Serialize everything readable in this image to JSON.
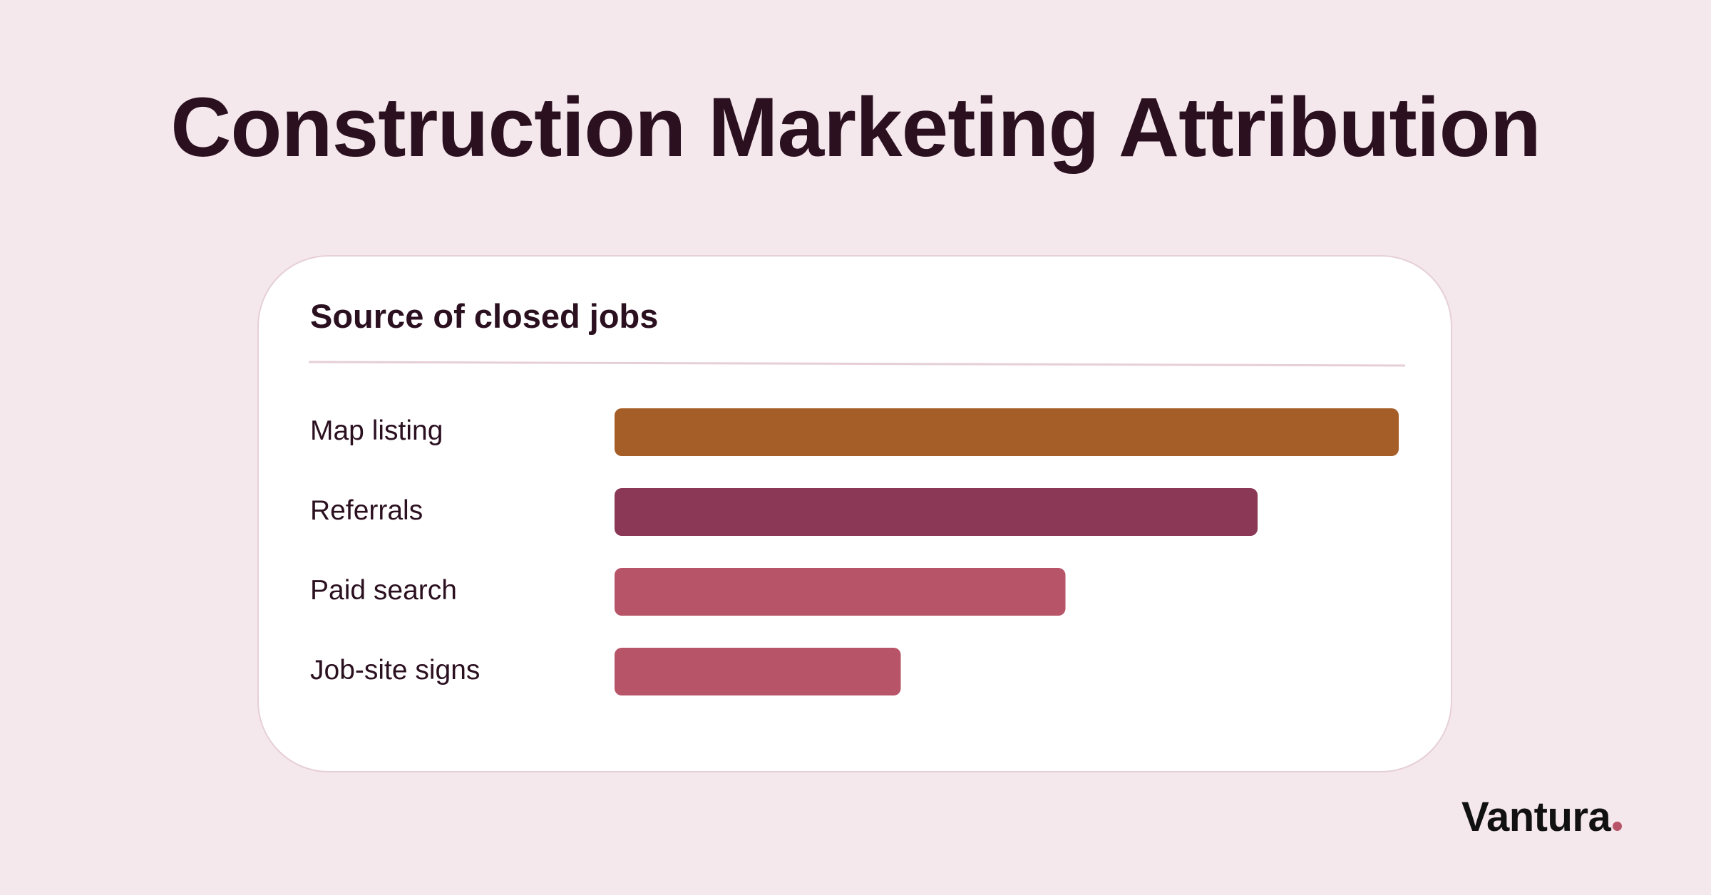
{
  "page": {
    "title": "Construction Marketing Attribution"
  },
  "brand": {
    "name": "Vantura",
    "dot_color": "#b85468"
  },
  "colors": {
    "background": "#f5e8ec",
    "text": "#2b1020",
    "divider": "#e6cfd7"
  },
  "chart_data": {
    "type": "bar",
    "orientation": "horizontal",
    "title": "Source of closed jobs",
    "categories": [
      "Map listing",
      "Referrals",
      "Paid search",
      "Job-site signs"
    ],
    "values": [
      100,
      82,
      57.5,
      36.5
    ],
    "colors": [
      "#a65e28",
      "#8b3856",
      "#b85468",
      "#b85468"
    ],
    "xlim": [
      0,
      100
    ],
    "grid": false,
    "legend": "none"
  }
}
